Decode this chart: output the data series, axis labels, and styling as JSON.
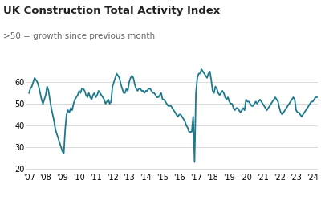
{
  "title": "UK Construction Total Activity Index",
  "subtitle": ">50 = growth since previous month",
  "line_color": "#1b7a8c",
  "line_width": 1.3,
  "background_color": "#ffffff",
  "grid_color": "#cccccc",
  "title_fontsize": 9.5,
  "subtitle_fontsize": 7.5,
  "tick_fontsize": 7,
  "ylim": [
    18,
    72
  ],
  "yticks": [
    20,
    30,
    40,
    50,
    60
  ],
  "x_labels": [
    "'07",
    "'08",
    "'09",
    "'10",
    "'11",
    "'12",
    "'13",
    "'14",
    "'15",
    "'16",
    "'17",
    "'18",
    "'19",
    "'20",
    "'21",
    "'22",
    "'23",
    "'24"
  ],
  "pmi": [
    55,
    57,
    58,
    60,
    62,
    61,
    60,
    58,
    55,
    52,
    50,
    52,
    54,
    58,
    56,
    52,
    48,
    45,
    42,
    38,
    36,
    34,
    32,
    30,
    28,
    27,
    38,
    45,
    47,
    46,
    48,
    47,
    50,
    52,
    53,
    54,
    56,
    55,
    57,
    57,
    56,
    54,
    53,
    55,
    53,
    52,
    54,
    55,
    53,
    54,
    56,
    55,
    54,
    53,
    52,
    50,
    51,
    52,
    50,
    51,
    58,
    60,
    62,
    64,
    63,
    62,
    59,
    57,
    55,
    55,
    57,
    56,
    60,
    62,
    63,
    62,
    59,
    57,
    56,
    57,
    57,
    56,
    56,
    55,
    56,
    56,
    57,
    57,
    56,
    55,
    55,
    54,
    53,
    53,
    54,
    55,
    52,
    52,
    51,
    50,
    49,
    49,
    49,
    48,
    47,
    46,
    45,
    44,
    45,
    45,
    44,
    43,
    42,
    40,
    39,
    37,
    37,
    37,
    44,
    23,
    55,
    62,
    64,
    64,
    66,
    65,
    64,
    63,
    62,
    64,
    65,
    61,
    56,
    55,
    58,
    57,
    55,
    54,
    55,
    56,
    55,
    53,
    52,
    53,
    51,
    50,
    50,
    48,
    47,
    48,
    48,
    47,
    46,
    47,
    48,
    47,
    52,
    51,
    51,
    50,
    49,
    49,
    50,
    51,
    50,
    51,
    52,
    51,
    50,
    49,
    48,
    47,
    48,
    49,
    50,
    51,
    52,
    53,
    52,
    51,
    48,
    46,
    45,
    46,
    47,
    48,
    49,
    50,
    51,
    52,
    53,
    52,
    47,
    46,
    46,
    45,
    44,
    45,
    46,
    47,
    48,
    49,
    50,
    51,
    51,
    52,
    53,
    53
  ]
}
